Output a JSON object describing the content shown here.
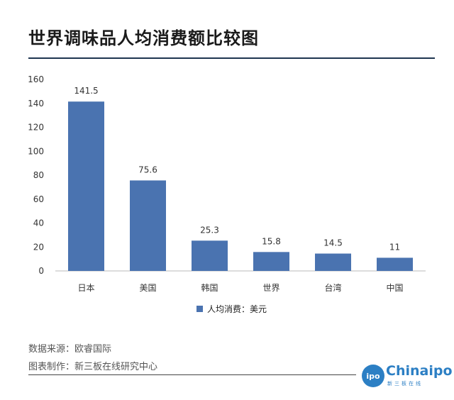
{
  "title": "世界调味品人均消费额比较图",
  "chart_data": {
    "type": "bar",
    "categories": [
      "日本",
      "美国",
      "韩国",
      "世界",
      "台湾",
      "中国"
    ],
    "series": [
      {
        "name": "人均消费：美元",
        "values": [
          141.5,
          75.6,
          25.3,
          15.8,
          14.5,
          11
        ]
      }
    ],
    "data_labels": [
      "141.5",
      "75.6",
      "25.3",
      "15.8",
      "14.5",
      "11"
    ],
    "yticks": [
      "0",
      "20",
      "40",
      "60",
      "80",
      "100",
      "120",
      "140",
      "160"
    ],
    "ylim": [
      0,
      160
    ],
    "grid": false,
    "legend_position": "bottom",
    "bar_color": "#4a73b0"
  },
  "footer": {
    "source": "数据来源：欧睿国际",
    "producer": "图表制作：新三板在线研究中心"
  },
  "logo": {
    "circle_text": "ipo",
    "text": "Chinaipo",
    "sub": "新三板在线"
  }
}
